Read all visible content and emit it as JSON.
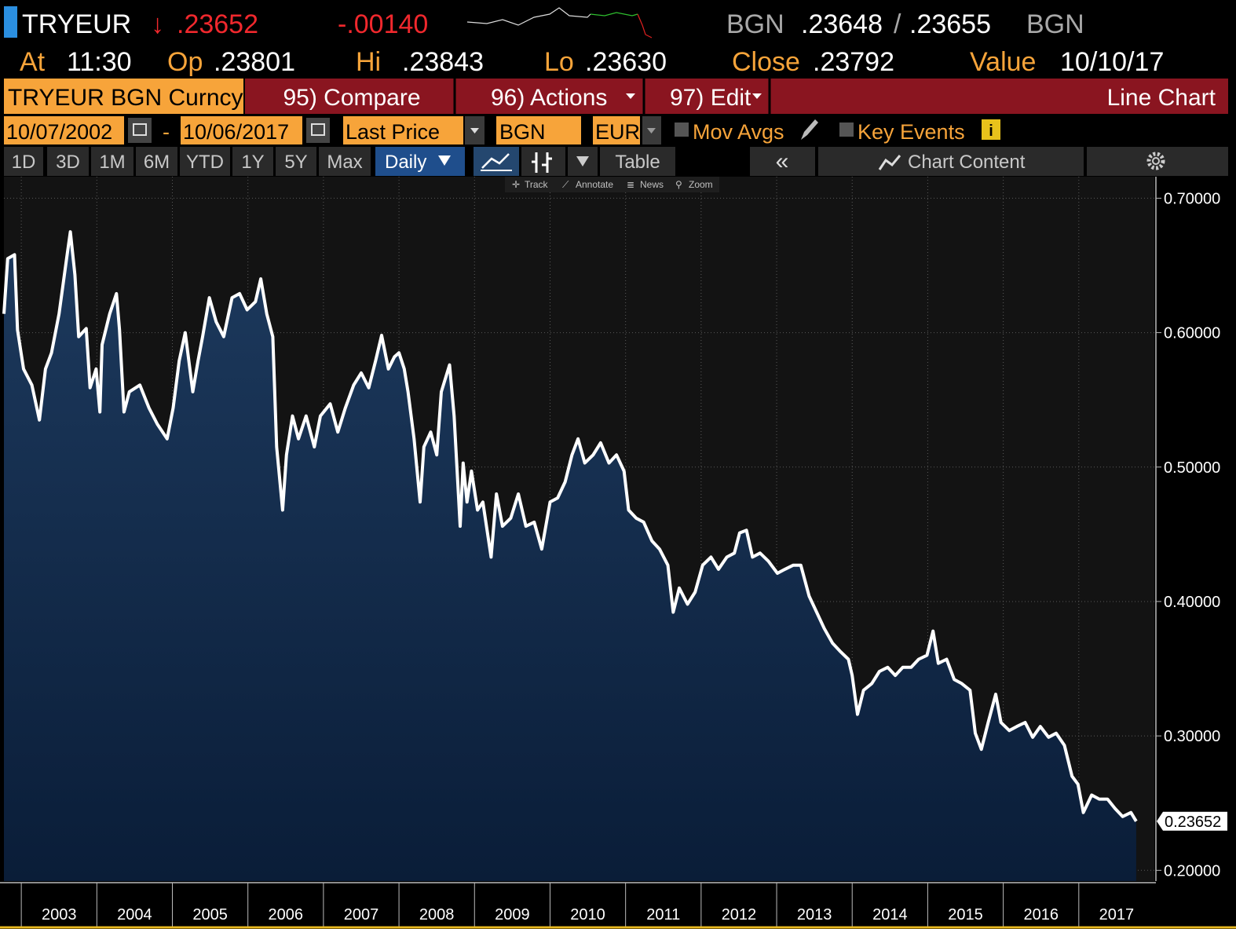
{
  "header": {
    "ticker": "TRYEUR",
    "last": ".23652",
    "change": "-.00140",
    "bid_source": "BGN",
    "bid": ".23648",
    "separator": "/",
    "ask": ".23655",
    "ask_source": "BGN",
    "at_label": "At",
    "time": "11:30",
    "open_label": "Op",
    "open": ".23801",
    "high_label": "Hi",
    "high": ".23843",
    "low_label": "Lo",
    "low": ".23630",
    "close_label": "Close",
    "close": ".23792",
    "value_label": "Value",
    "value_date": "10/10/17"
  },
  "menu": {
    "security": "TRYEUR BGN Curncy",
    "compare": "95) Compare",
    "actions": "96) Actions",
    "edit": "97) Edit",
    "view": "Line Chart"
  },
  "controls": {
    "start_date": "10/07/2002",
    "date_separator": "-",
    "end_date": "10/06/2017",
    "field": "Last Price",
    "source": "BGN",
    "currency": "EUR",
    "mov_avgs": "Mov Avgs",
    "key_events": "Key Events"
  },
  "periods": [
    "1D",
    "3D",
    "1M",
    "6M",
    "YTD",
    "1Y",
    "5Y",
    "Max"
  ],
  "frequency": "Daily",
  "toolbar": {
    "table": "Table",
    "chart_content": "Chart Content",
    "track": "Track",
    "annotate": "Annotate",
    "news": "News",
    "zoom": "Zoom"
  },
  "chart_data": {
    "type": "line",
    "color": "#ffffff",
    "grid": true,
    "x": [
      2002.77,
      2002.82,
      2002.91,
      2002.95,
      2003.03,
      2003.14,
      2003.24,
      2003.32,
      2003.4,
      2003.5,
      2003.6,
      2003.65,
      2003.71,
      2003.76,
      2003.86,
      2003.91,
      2003.99,
      2004.04,
      2004.07,
      2004.17,
      2004.26,
      2004.3,
      2004.36,
      2004.43,
      2004.57,
      2004.69,
      2004.8,
      2004.93,
      2005.01,
      2005.09,
      2005.17,
      2005.27,
      2005.34,
      2005.4,
      2005.49,
      2005.58,
      2005.68,
      2005.79,
      2005.89,
      2005.99,
      2006.1,
      2006.17,
      2006.25,
      2006.33,
      2006.38,
      2006.46,
      2006.51,
      2006.59,
      2006.67,
      2006.77,
      2006.88,
      2006.96,
      2007.09,
      2007.19,
      2007.29,
      2007.4,
      2007.5,
      2007.6,
      2007.69,
      2007.77,
      2007.86,
      2007.94,
      2008.0,
      2008.07,
      2008.12,
      2008.2,
      2008.28,
      2008.33,
      2008.42,
      2008.5,
      2008.56,
      2008.67,
      2008.73,
      2008.81,
      2008.85,
      2008.9,
      2008.96,
      2009.04,
      2009.11,
      2009.22,
      2009.29,
      2009.37,
      2009.48,
      2009.58,
      2009.68,
      2009.79,
      2009.89,
      2010.0,
      2010.1,
      2010.2,
      2010.29,
      2010.37,
      2010.46,
      2010.57,
      2010.67,
      2010.78,
      2010.88,
      2010.98,
      2011.04,
      2011.14,
      2011.24,
      2011.35,
      2011.45,
      2011.56,
      2011.63,
      2011.71,
      2011.82,
      2011.92,
      2012.02,
      2012.13,
      2012.23,
      2012.34,
      2012.44,
      2012.51,
      2012.6,
      2012.68,
      2012.78,
      2012.89,
      2013.01,
      2013.11,
      2013.22,
      2013.32,
      2013.43,
      2013.53,
      2013.63,
      2013.74,
      2013.84,
      2013.95,
      2014.0,
      2014.07,
      2014.15,
      2014.26,
      2014.36,
      2014.47,
      2014.57,
      2014.67,
      2014.78,
      2014.88,
      2014.99,
      2015.07,
      2015.14,
      2015.25,
      2015.35,
      2015.45,
      2015.56,
      2015.63,
      2015.71,
      2015.8,
      2015.9,
      2015.97,
      2016.08,
      2016.18,
      2016.29,
      2016.39,
      2016.49,
      2016.6,
      2016.7,
      2016.81,
      2016.91,
      2016.99,
      2017.06,
      2017.17,
      2017.27,
      2017.38,
      2017.48,
      2017.58,
      2017.69,
      2017.76
    ],
    "values": [
      0.614,
      0.655,
      0.658,
      0.602,
      0.573,
      0.561,
      0.535,
      0.573,
      0.585,
      0.614,
      0.655,
      0.675,
      0.643,
      0.597,
      0.603,
      0.559,
      0.573,
      0.541,
      0.591,
      0.614,
      0.629,
      0.602,
      0.541,
      0.556,
      0.561,
      0.544,
      0.532,
      0.521,
      0.544,
      0.579,
      0.6,
      0.556,
      0.579,
      0.597,
      0.626,
      0.608,
      0.597,
      0.626,
      0.629,
      0.617,
      0.623,
      0.64,
      0.614,
      0.597,
      0.515,
      0.468,
      0.509,
      0.538,
      0.521,
      0.538,
      0.515,
      0.538,
      0.547,
      0.526,
      0.544,
      0.561,
      0.57,
      0.559,
      0.579,
      0.598,
      0.573,
      0.582,
      0.585,
      0.573,
      0.556,
      0.521,
      0.474,
      0.515,
      0.526,
      0.509,
      0.556,
      0.576,
      0.538,
      0.456,
      0.503,
      0.474,
      0.497,
      0.468,
      0.474,
      0.433,
      0.48,
      0.456,
      0.462,
      0.48,
      0.456,
      0.459,
      0.439,
      0.474,
      0.477,
      0.489,
      0.509,
      0.521,
      0.503,
      0.509,
      0.518,
      0.503,
      0.509,
      0.497,
      0.468,
      0.462,
      0.459,
      0.445,
      0.439,
      0.427,
      0.392,
      0.41,
      0.398,
      0.407,
      0.427,
      0.433,
      0.424,
      0.433,
      0.436,
      0.451,
      0.453,
      0.433,
      0.436,
      0.43,
      0.421,
      0.424,
      0.427,
      0.427,
      0.404,
      0.392,
      0.38,
      0.369,
      0.363,
      0.357,
      0.345,
      0.316,
      0.334,
      0.339,
      0.348,
      0.351,
      0.345,
      0.351,
      0.351,
      0.357,
      0.36,
      0.378,
      0.354,
      0.357,
      0.342,
      0.339,
      0.334,
      0.302,
      0.29,
      0.31,
      0.331,
      0.31,
      0.304,
      0.307,
      0.31,
      0.299,
      0.307,
      0.299,
      0.302,
      0.293,
      0.27,
      0.264,
      0.243,
      0.256,
      0.253,
      0.253,
      0.246,
      0.24,
      0.243,
      0.23652
    ],
    "xlim": [
      2002.77,
      2018.0
    ],
    "xticks": [
      2003,
      2004,
      2005,
      2006,
      2007,
      2008,
      2009,
      2010,
      2011,
      2012,
      2013,
      2014,
      2015,
      2016,
      2017
    ],
    "ylim": [
      0.192,
      0.716
    ],
    "yticks": [
      {
        "value": 0.2,
        "label": "0.20000"
      },
      {
        "value": 0.3,
        "label": "0.30000"
      },
      {
        "value": 0.4,
        "label": "0.40000"
      },
      {
        "value": 0.5,
        "label": "0.50000"
      },
      {
        "value": 0.6,
        "label": "0.60000"
      },
      {
        "value": 0.7,
        "label": "0.70000"
      }
    ]
  }
}
